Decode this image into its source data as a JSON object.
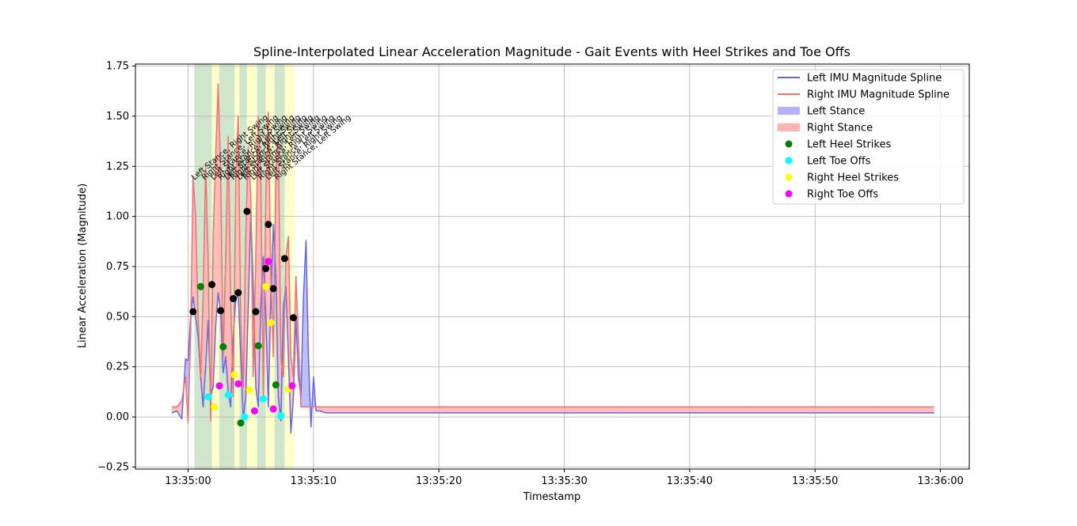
{
  "chart_data": {
    "type": "line",
    "title": "Spline-Interpolated Linear Acceleration Magnitude - Gait Events with Heel Strikes and Toe Offs",
    "xlabel": "Timestamp",
    "ylabel": "Linear Acceleration (Magnitude)",
    "x_ticks": [
      "13:35:00",
      "13:35:10",
      "13:35:20",
      "13:35:30",
      "13:35:40",
      "13:35:50",
      "13:36:00"
    ],
    "y_ticks": [
      "−0.25",
      "0.00",
      "0.25",
      "0.50",
      "0.75",
      "1.00",
      "1.25",
      "1.50",
      "1.75"
    ],
    "xlim_seconds": [
      -4.2,
      62.3
    ],
    "ylim": [
      -0.26,
      1.76
    ],
    "grid": true,
    "legend_position": "top-right",
    "colors": {
      "left_line": "#6666e6",
      "right_line": "#f07070",
      "left_stance": "#b2b2ff",
      "right_stance": "#ffb3b3",
      "green_band": "#cfe6cc",
      "yellow_band": "#ffffcc",
      "heel_left": "#008000",
      "toe_left": "#00ffff",
      "heel_right": "#ffff00",
      "toe_right": "#ff00ff",
      "extra": "#000000"
    },
    "series": [
      {
        "name": "Left IMU Magnitude Spline",
        "x": [
          -1.3,
          -0.9,
          -0.5,
          -0.2,
          0.0,
          0.2,
          0.4,
          0.6,
          0.8,
          1.0,
          1.2,
          1.4,
          1.6,
          1.8,
          2.0,
          2.2,
          2.4,
          2.6,
          2.8,
          3.0,
          3.2,
          3.4,
          3.6,
          3.8,
          4.0,
          4.2,
          4.4,
          4.6,
          4.8,
          5.0,
          5.2,
          5.4,
          5.6,
          5.8,
          6.0,
          6.2,
          6.4,
          6.6,
          6.8,
          7.0,
          7.2,
          7.4,
          7.6,
          7.8,
          8.0,
          8.2,
          8.4,
          8.6,
          8.8,
          9.0,
          9.2,
          9.4,
          9.6,
          9.8,
          10.0,
          10.2,
          10.5,
          11,
          12,
          15,
          20,
          25,
          30,
          35,
          40,
          45,
          50,
          55,
          59.5
        ],
        "y": [
          0.02,
          0.03,
          -0.01,
          0.29,
          0.28,
          0.5,
          0.6,
          0.5,
          0.4,
          0.2,
          0.05,
          0.25,
          0.48,
          0.1,
          0.15,
          0.45,
          0.62,
          0.52,
          0.22,
          0.3,
          0.12,
          0.05,
          0.4,
          0.58,
          0.62,
          0.3,
          -0.01,
          0.1,
          0.55,
          1.02,
          0.65,
          0.15,
          0.05,
          0.55,
          0.8,
          0.5,
          0.05,
          0.6,
          0.96,
          0.7,
          0.1,
          -0.02,
          0.55,
          0.65,
          0.3,
          -0.08,
          0.1,
          0.5,
          0.2,
          0.1,
          0.6,
          0.88,
          0.3,
          -0.05,
          0.2,
          0.03,
          0.03,
          0.02,
          0.02,
          0.02,
          0.02,
          0.02,
          0.02,
          0.02,
          0.02,
          0.02,
          0.02,
          0.02,
          0.02
        ]
      },
      {
        "name": "Right IMU Magnitude Spline",
        "x": [
          -1.3,
          -0.9,
          -0.5,
          -0.2,
          0.0,
          0.2,
          0.4,
          0.6,
          0.8,
          1.0,
          1.2,
          1.4,
          1.6,
          1.8,
          2.0,
          2.2,
          2.4,
          2.6,
          2.8,
          3.0,
          3.2,
          3.4,
          3.6,
          3.8,
          4.0,
          4.2,
          4.4,
          4.6,
          4.8,
          5.0,
          5.2,
          5.4,
          5.6,
          5.8,
          6.0,
          6.2,
          6.4,
          6.6,
          6.8,
          7.0,
          7.2,
          7.4,
          7.6,
          7.8,
          8.0,
          8.2,
          8.4,
          8.6,
          8.8,
          9.0,
          9.2,
          9.4,
          9.6,
          9.8,
          10.0,
          10.2,
          10.5,
          11,
          12,
          15,
          20,
          25,
          30,
          35,
          40,
          45,
          50,
          55,
          59.5
        ],
        "y": [
          0.05,
          0.05,
          0.08,
          0.2,
          -0.03,
          0.4,
          1.2,
          1.0,
          0.5,
          0.2,
          0.6,
          1.25,
          0.8,
          -0.02,
          0.9,
          1.3,
          1.66,
          1.2,
          0.3,
          0.8,
          1.4,
          0.6,
          0.1,
          1.2,
          1.5,
          0.5,
          0.15,
          0.9,
          1.35,
          1.1,
          0.2,
          0.8,
          1.5,
          1.2,
          0.1,
          1.1,
          1.52,
          0.7,
          0.3,
          1.2,
          1.4,
          0.3,
          0.2,
          0.8,
          0.9,
          0.3,
          0.2,
          0.7,
          0.4,
          0.05,
          0.05,
          0.05,
          0.05,
          0.05,
          0.05,
          0.05,
          0.05,
          0.05,
          0.05,
          0.05,
          0.05,
          0.05,
          0.05,
          0.05,
          0.05,
          0.05,
          0.05,
          0.05,
          0.05
        ]
      }
    ],
    "phase_bands": [
      {
        "start": 0.5,
        "end": 1.9,
        "type": "green"
      },
      {
        "start": 1.9,
        "end": 2.5,
        "type": "yellow"
      },
      {
        "start": 2.5,
        "end": 3.7,
        "type": "green"
      },
      {
        "start": 3.7,
        "end": 4.1,
        "type": "yellow"
      },
      {
        "start": 4.1,
        "end": 4.7,
        "type": "green"
      },
      {
        "start": 4.7,
        "end": 5.5,
        "type": "yellow"
      },
      {
        "start": 5.5,
        "end": 6.2,
        "type": "green"
      },
      {
        "start": 6.2,
        "end": 6.9,
        "type": "yellow"
      },
      {
        "start": 6.9,
        "end": 7.7,
        "type": "green"
      },
      {
        "start": 7.7,
        "end": 8.5,
        "type": "yellow"
      }
    ],
    "phase_labels": [
      {
        "x": 0.5,
        "text": "Left Stance, Right Swing"
      },
      {
        "x": 1.3,
        "text": "Right Stance, Left Swing"
      },
      {
        "x": 2.0,
        "text": "Left Stance, Right Swing"
      },
      {
        "x": 2.6,
        "text": "Right Stance, Left Swing"
      },
      {
        "x": 3.1,
        "text": "Left Stance, Right Swing"
      },
      {
        "x": 3.6,
        "text": "Right Stance, Left Swing"
      },
      {
        "x": 4.1,
        "text": "Left Stance, Right Swing"
      },
      {
        "x": 4.6,
        "text": "Right Stance, Left Swing"
      },
      {
        "x": 5.2,
        "text": "Left Stance, Right Swing"
      },
      {
        "x": 5.8,
        "text": "Right Stance, Left Swing"
      },
      {
        "x": 6.4,
        "text": "Left Stance, Right Swing"
      },
      {
        "x": 7.1,
        "text": "Right Stance, Left Swing"
      }
    ],
    "markers": {
      "left_heel": [
        [
          1.0,
          0.65
        ],
        [
          2.8,
          0.35
        ],
        [
          4.2,
          -0.03
        ],
        [
          5.6,
          0.355
        ],
        [
          7.0,
          0.16
        ]
      ],
      "left_toe": [
        [
          1.6,
          0.1
        ],
        [
          3.2,
          0.11
        ],
        [
          4.5,
          0.0
        ],
        [
          6.0,
          0.09
        ],
        [
          7.4,
          0.005
        ]
      ],
      "right_heel": [
        [
          2.1,
          0.05
        ],
        [
          3.7,
          0.21
        ],
        [
          4.9,
          0.135
        ],
        [
          6.2,
          0.65
        ],
        [
          6.6,
          0.47
        ],
        [
          8.0,
          0.14
        ]
      ],
      "right_toe": [
        [
          2.5,
          0.155
        ],
        [
          4.0,
          0.165
        ],
        [
          5.3,
          0.03
        ],
        [
          6.4,
          0.775
        ],
        [
          6.8,
          0.04
        ],
        [
          8.3,
          0.155
        ]
      ],
      "extra": [
        [
          0.4,
          0.525
        ],
        [
          1.9,
          0.66
        ],
        [
          2.6,
          0.53
        ],
        [
          3.6,
          0.59
        ],
        [
          4.0,
          0.62
        ],
        [
          4.7,
          1.025
        ],
        [
          5.4,
          0.525
        ],
        [
          6.2,
          0.74
        ],
        [
          6.4,
          0.96
        ],
        [
          6.8,
          0.64
        ],
        [
          7.7,
          0.79
        ],
        [
          8.4,
          0.495
        ]
      ]
    },
    "legend": [
      {
        "label": "Left IMU Magnitude Spline",
        "kind": "line",
        "color_key": "left_line"
      },
      {
        "label": "Right IMU Magnitude Spline",
        "kind": "line",
        "color_key": "right_line"
      },
      {
        "label": "Left Stance",
        "kind": "patch",
        "color_key": "left_stance"
      },
      {
        "label": "Right Stance",
        "kind": "patch",
        "color_key": "right_stance"
      },
      {
        "label": "Left Heel Strikes",
        "kind": "dot",
        "color_key": "heel_left"
      },
      {
        "label": "Left Toe Offs",
        "kind": "dot",
        "color_key": "toe_left"
      },
      {
        "label": "Right Heel Strikes",
        "kind": "dot",
        "color_key": "heel_right"
      },
      {
        "label": "Right Toe Offs",
        "kind": "dot",
        "color_key": "toe_right"
      }
    ]
  }
}
